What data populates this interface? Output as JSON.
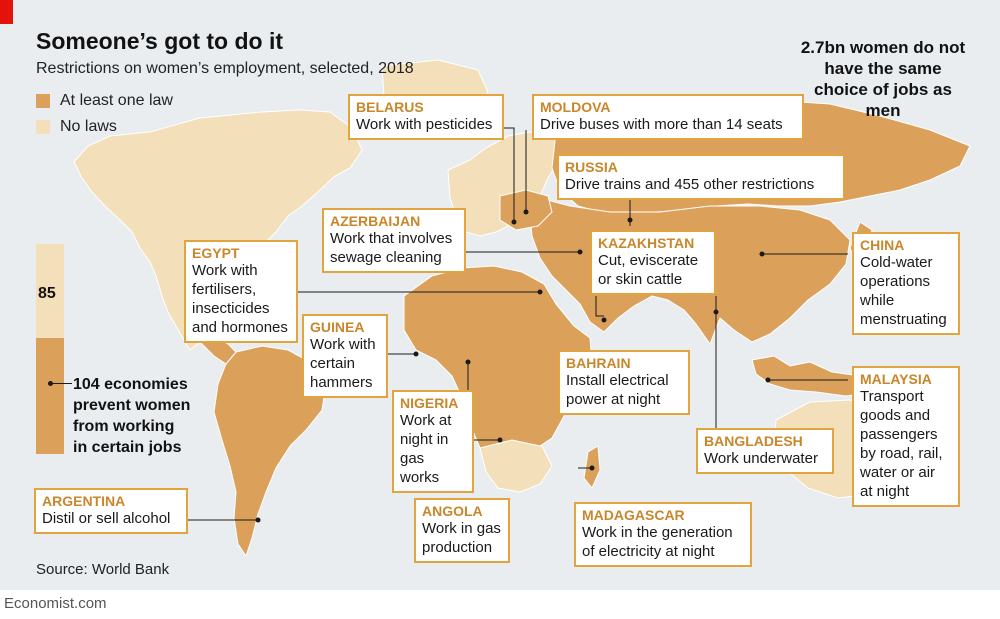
{
  "title": "Someone’s got to do it",
  "subtitle": "Restrictions on women’s employment, selected, 2018",
  "legend": [
    {
      "label": "At least one law",
      "color": "#dba05a"
    },
    {
      "label": "No laws",
      "color": "#f3dfb9"
    }
  ],
  "headline": "2.7bn women do not have the same choice of jobs as men",
  "bar": {
    "no_laws_count": "85",
    "with_laws_count": 104,
    "with_laws_text": "104 economies\nprevent women\nfrom working\nin certain jobs"
  },
  "callouts": [
    {
      "country": "BELARUS",
      "text": "Work with pesticides"
    },
    {
      "country": "MOLDOVA",
      "text": "Drive buses with more than 14 seats"
    },
    {
      "country": "RUSSIA",
      "text": "Drive trains and 455 other restrictions"
    },
    {
      "country": "AZERBAIJAN",
      "text": "Work that involves\nsewage cleaning"
    },
    {
      "country": "EGYPT",
      "text": "Work with\nfertilisers,\ninsecticides\nand hormones"
    },
    {
      "country": "KAZAKHSTAN",
      "text": "Cut, eviscerate\nor skin cattle"
    },
    {
      "country": "CHINA",
      "text": "Cold-water\noperations\nwhile\nmenstruating"
    },
    {
      "country": "GUINEA",
      "text": "Work with\ncertain\nhammers"
    },
    {
      "country": "BAHRAIN",
      "text": "Install electrical\npower at night"
    },
    {
      "country": "NIGERIA",
      "text": "Work at\nnight in\ngas works"
    },
    {
      "country": "MALAYSIA",
      "text": "Transport\ngoods and\npassengers\nby road, rail,\nwater or air\nat night"
    },
    {
      "country": "BANGLADESH",
      "text": "Work underwater"
    },
    {
      "country": "ARGENTINA",
      "text": "Distil or sell alcohol"
    },
    {
      "country": "ANGOLA",
      "text": "Work in gas\nproduction"
    },
    {
      "country": "MADAGASCAR",
      "text": "Work in the generation\nof electricity at night"
    }
  ],
  "source": "Source: World Bank",
  "footer": "Economist.com",
  "colors": {
    "accent": "#e2a43f",
    "law": "#dba05a",
    "nolaw": "#f3dfb9",
    "sea": "#e9edf0",
    "brand_red": "#e3120b"
  }
}
